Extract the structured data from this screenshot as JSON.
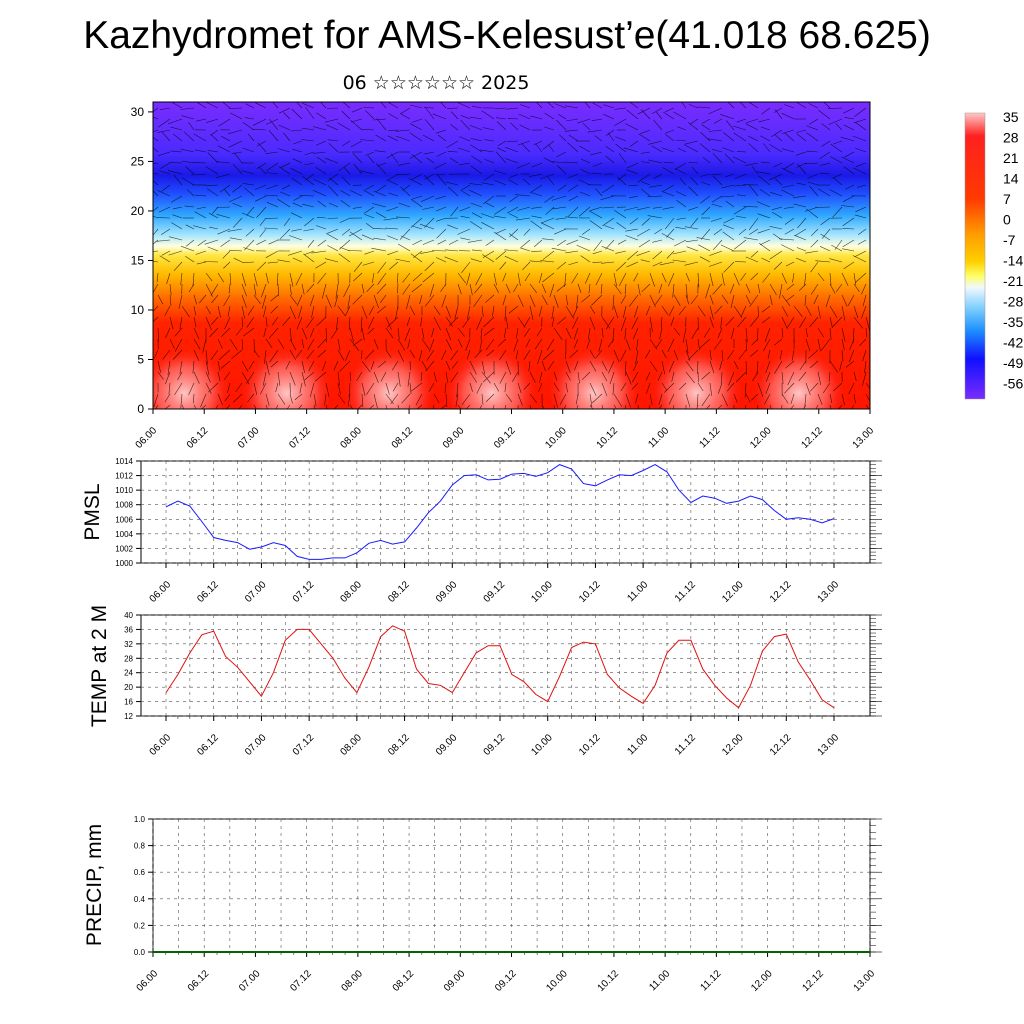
{
  "page": {
    "title": "Kazhydromet for AMS-Kelesust’e(41.018 68.625)",
    "subtitle": "06 ☆☆☆☆☆☆ 2025"
  },
  "colors": {
    "pmsl_line": "#1a1aff",
    "temp_line": "#e01010",
    "grid": "#555555",
    "axis": "#000000",
    "cross_section_low": "#ff0000",
    "cross_section_mid": "#ffe000",
    "cross_section_high": "#7a20ff"
  },
  "chart_data": [
    {
      "type": "heatmap",
      "name": "cross-section",
      "x_ticks": [
        "06.00",
        "06.12",
        "07.00",
        "07.12",
        "08.00",
        "08.12",
        "09.00",
        "09.12",
        "10.00",
        "10.12",
        "11.00",
        "11.12",
        "12.00",
        "12.12",
        "13.00"
      ],
      "y_ticks": [
        0,
        5,
        10,
        15,
        20,
        25,
        30
      ],
      "ylim": [
        0,
        31
      ],
      "colorbar_labels": [
        "35",
        "28",
        "21",
        "14",
        "7",
        "0",
        "-7",
        "-14",
        "-21",
        "-28",
        "-35",
        "-42",
        "-49",
        "-56"
      ]
    },
    {
      "type": "line",
      "ylabel": "PMSL",
      "ylim": [
        1000,
        1014
      ],
      "y_ticks": [
        1000,
        1002,
        1004,
        1006,
        1008,
        1010,
        1012,
        1014
      ],
      "x_ticks": [
        "06.00",
        "06.12",
        "07.00",
        "07.12",
        "08.00",
        "08.12",
        "09.00",
        "09.12",
        "10.00",
        "10.12",
        "11.00",
        "11.12",
        "12.00",
        "12.12",
        "13.00"
      ],
      "series": [
        {
          "x": [
            0,
            3,
            6,
            9,
            12,
            15,
            18,
            21,
            24,
            27,
            30,
            33,
            36,
            39,
            42,
            45,
            48,
            51,
            54,
            57,
            60,
            63,
            66,
            69,
            72,
            75,
            78,
            81,
            84,
            87,
            90,
            93,
            96,
            99,
            102,
            105,
            108,
            111,
            114,
            117,
            120,
            123,
            126,
            129,
            132,
            135,
            138,
            141,
            144,
            147,
            150,
            153,
            156,
            159,
            162,
            165,
            168
          ],
          "values": [
            1007.7,
            1008.5,
            1007.8,
            1005.7,
            1003.5,
            1003.1,
            1002.8,
            1001.9,
            1002.2,
            1002.8,
            1002.4,
            1000.9,
            1000.5,
            1000.5,
            1000.7,
            1000.7,
            1001.4,
            1002.7,
            1003.1,
            1002.6,
            1002.9,
            1004.8,
            1006.9,
            1008.5,
            1010.7,
            1012.0,
            1012.1,
            1011.4,
            1011.5,
            1012.2,
            1012.3,
            1011.9,
            1012.4,
            1013.5,
            1012.9,
            1010.9,
            1010.6,
            1011.4,
            1012.1,
            1012.0,
            1012.7,
            1013.5,
            1012.5,
            1010.0,
            1008.3,
            1009.2,
            1008.9,
            1008.2,
            1008.5,
            1009.2,
            1008.7,
            1007.2,
            1006.0,
            1006.2,
            1006.0,
            1005.5,
            1006.1
          ]
        }
      ]
    },
    {
      "type": "line",
      "ylabel": "TEMP at 2 M",
      "ylim": [
        12,
        40
      ],
      "y_ticks": [
        12,
        16,
        20,
        24,
        28,
        32,
        36,
        40
      ],
      "x_ticks": [
        "06.00",
        "06.12",
        "07.00",
        "07.12",
        "08.00",
        "08.12",
        "09.00",
        "09.12",
        "10.00",
        "10.12",
        "11.00",
        "11.12",
        "12.00",
        "12.12",
        "13.00"
      ],
      "series": [
        {
          "x": [
            0,
            3,
            6,
            9,
            12,
            15,
            18,
            21,
            24,
            27,
            30,
            33,
            36,
            39,
            42,
            45,
            48,
            51,
            54,
            57,
            60,
            63,
            66,
            69,
            72,
            75,
            78,
            81,
            84,
            87,
            90,
            93,
            96,
            99,
            102,
            105,
            108,
            111,
            114,
            117,
            120,
            123,
            126,
            129,
            132,
            135,
            138,
            141,
            144,
            147,
            150,
            153,
            156,
            159,
            162,
            165,
            168
          ],
          "values": [
            18.5,
            23.5,
            29.5,
            34.5,
            35.5,
            28.5,
            25.5,
            21.5,
            17.5,
            24.0,
            33.0,
            36.0,
            36.0,
            32.0,
            28.0,
            22.5,
            18.5,
            25.5,
            34.0,
            37.0,
            35.5,
            25.0,
            21.0,
            20.5,
            18.5,
            24.0,
            29.5,
            31.5,
            31.5,
            23.5,
            21.5,
            18.0,
            16.0,
            23.0,
            31.0,
            32.5,
            32.0,
            23.5,
            19.8,
            17.5,
            15.5,
            20.5,
            29.5,
            33.0,
            33.0,
            25.0,
            20.5,
            17.0,
            14.3,
            20.5,
            30.0,
            34.0,
            34.7,
            27.0,
            22.0,
            16.5,
            14.3
          ]
        }
      ]
    },
    {
      "type": "line",
      "ylabel": "PRECIP, mm",
      "ylim": [
        0,
        1.0
      ],
      "y_ticks": [
        "0.0",
        "0.2",
        "0.4",
        "0.6",
        "0.8",
        "1.0"
      ],
      "x_ticks": [
        "06.00",
        "06.12",
        "07.00",
        "07.12",
        "08.00",
        "08.12",
        "09.00",
        "09.12",
        "10.00",
        "10.12",
        "11.00",
        "11.12",
        "12.00",
        "12.12",
        "13.00"
      ],
      "series": [
        {
          "x": [
            0,
            168
          ],
          "values": [
            0,
            0
          ]
        }
      ]
    }
  ]
}
